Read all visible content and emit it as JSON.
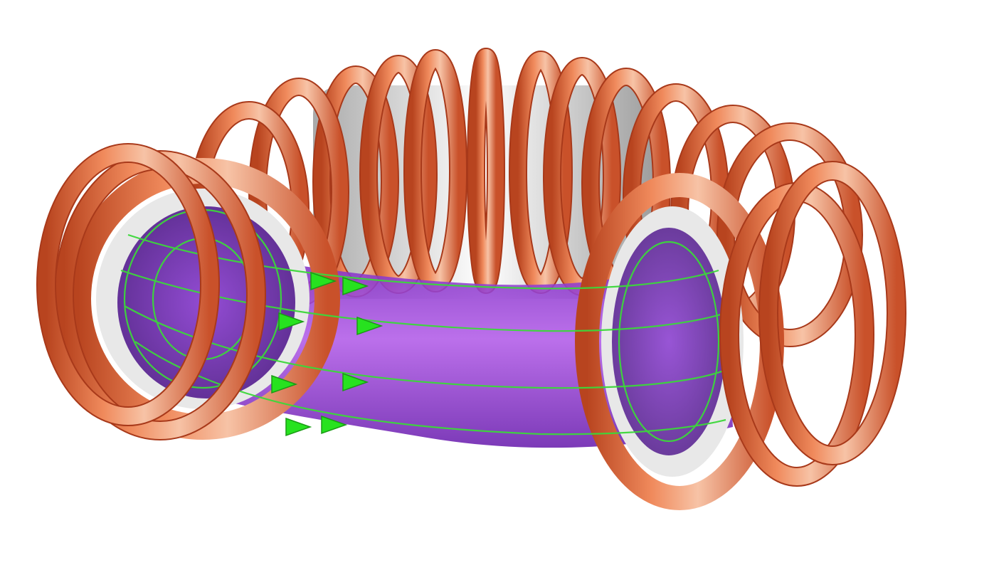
{
  "diagram": {
    "subject": "tokamak",
    "parts": [
      "toroidal-field-coils",
      "vacuum-vessel",
      "plasma",
      "magnetic-field-lines",
      "field-direction-arrows"
    ],
    "colors": {
      "background": "#ffffff",
      "coil": "#e0643e",
      "coil_edge": "#a8391a",
      "coil_highlight": "#f7c3a6",
      "vessel": "#dcdcdc",
      "vessel_shade": "#8f8f8f",
      "plasma": "#9a3fd6",
      "plasma_light": "#b45ee6",
      "field_line": "#3cd83a",
      "arrow": "#27e21f"
    },
    "visible_labels": []
  }
}
